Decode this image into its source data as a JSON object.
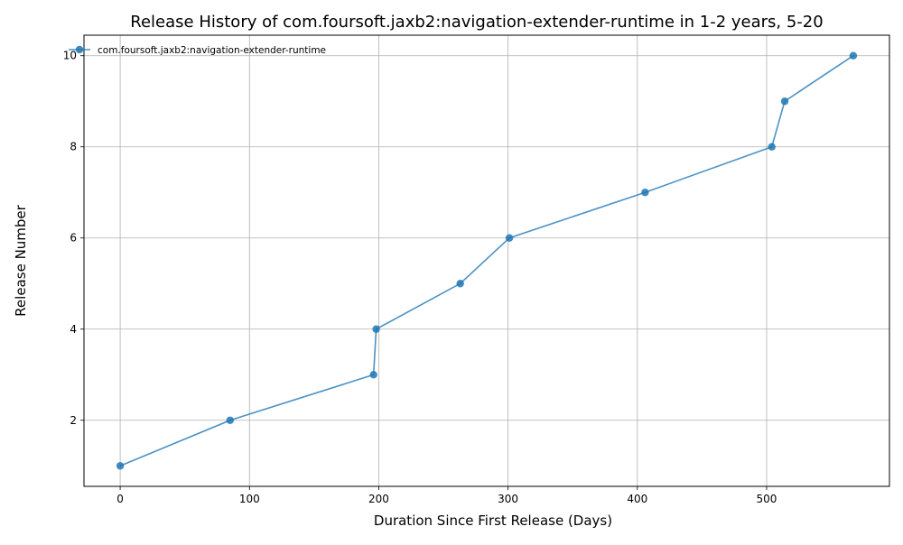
{
  "chart_data": {
    "type": "line",
    "title": "Release History of com.foursoft.jaxb2:navigation-extender-runtime in 1-2 years, 5-20",
    "xlabel": "Duration Since First Release (Days)",
    "ylabel": "Release Number",
    "xlim": [
      -28,
      595
    ],
    "ylim": [
      0.55,
      10.45
    ],
    "xticks": [
      0,
      100,
      200,
      300,
      400,
      500
    ],
    "yticks": [
      2,
      4,
      6,
      8,
      10
    ],
    "grid": true,
    "legend_position": "top-left",
    "series": [
      {
        "name": "com.foursoft.jaxb2:navigation-extender-runtime",
        "color": "#1f77b4",
        "x": [
          0,
          85,
          196,
          198,
          263,
          301,
          406,
          504,
          514,
          567
        ],
        "y": [
          1,
          2,
          3,
          4,
          5,
          6,
          7,
          8,
          9,
          10
        ]
      }
    ]
  }
}
